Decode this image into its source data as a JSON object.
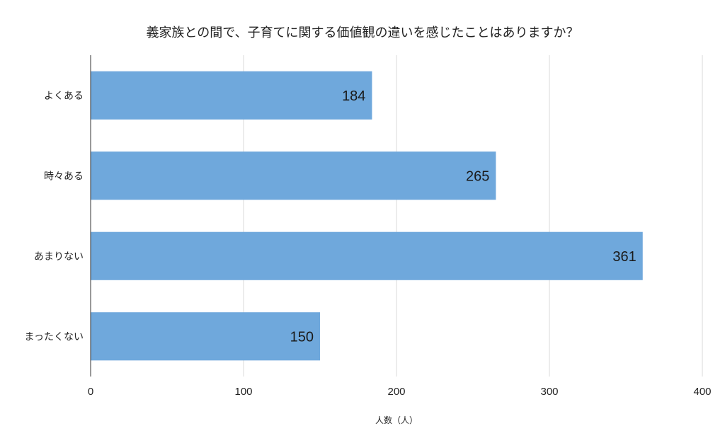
{
  "chart_data": {
    "type": "bar",
    "orientation": "horizontal",
    "title": "義家族との間で、子育てに関する価値観の違いを感じたことはありますか？",
    "categories": [
      "よくある",
      "時々ある",
      "あまりない",
      "まったくない"
    ],
    "values": [
      184,
      265,
      361,
      150
    ],
    "xlabel": "人数（人）",
    "ylabel": "",
    "xlim": [
      0,
      400
    ],
    "x_ticks": [
      "0",
      "100",
      "200",
      "300",
      "400"
    ],
    "grid": true,
    "legend": "none",
    "colors": {
      "bar": "#6fa8dc",
      "grid": "#d9d9d9",
      "axis": "#333333"
    }
  }
}
